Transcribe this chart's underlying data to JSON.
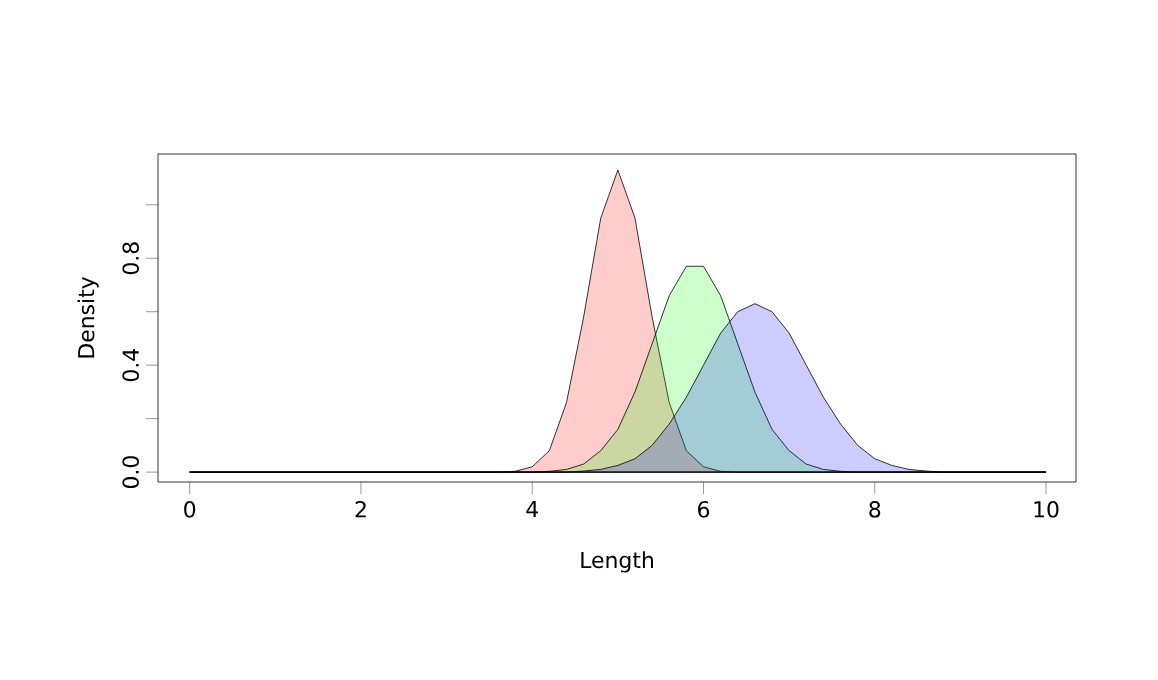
{
  "chart_data": {
    "type": "area",
    "xlabel": "Length",
    "ylabel": "Density",
    "xlim": [
      -0.37,
      10.35
    ],
    "ylim": [
      -0.037,
      1.19
    ],
    "xticks": [
      0,
      2,
      4,
      6,
      8,
      10
    ],
    "yticks": [
      {
        "value": 0,
        "label": "0.0"
      },
      {
        "value": 0.2,
        "label": null
      },
      0.4,
      {
        "value": 0.6,
        "label": null
      },
      0.8,
      {
        "value": 1.0,
        "label": null
      }
    ],
    "grid": false,
    "series": [
      {
        "color": "#ffcccc",
        "x": [
          0,
          3.6,
          3.8,
          4.0,
          4.2,
          4.4,
          4.6,
          4.8,
          5.0,
          5.2,
          5.4,
          5.6,
          5.8,
          6.0,
          6.2,
          6.4,
          10
        ],
        "values": [
          0,
          0,
          0.003,
          0.02,
          0.08,
          0.26,
          0.58,
          0.95,
          1.13,
          0.95,
          0.58,
          0.26,
          0.08,
          0.02,
          0.003,
          0,
          0
        ]
      },
      {
        "color": "#ccffcc",
        "x": [
          0,
          4.0,
          4.2,
          4.4,
          4.6,
          4.8,
          5.0,
          5.2,
          5.4,
          5.6,
          5.8,
          6.0,
          6.2,
          6.4,
          6.6,
          6.8,
          7.0,
          7.2,
          7.4,
          7.6,
          7.8,
          10
        ],
        "values": [
          0,
          0,
          0.003,
          0.01,
          0.03,
          0.08,
          0.16,
          0.3,
          0.48,
          0.66,
          0.77,
          0.77,
          0.66,
          0.48,
          0.3,
          0.16,
          0.08,
          0.03,
          0.01,
          0.003,
          0,
          0
        ]
      },
      {
        "color": "#ccccff",
        "x": [
          0,
          4.4,
          4.6,
          4.8,
          5.0,
          5.2,
          5.4,
          5.6,
          5.8,
          6.0,
          6.2,
          6.4,
          6.6,
          6.8,
          7.0,
          7.2,
          7.4,
          7.6,
          7.8,
          8.0,
          8.2,
          8.4,
          8.6,
          8.8,
          10
        ],
        "values": [
          0,
          0,
          0.004,
          0.01,
          0.025,
          0.05,
          0.1,
          0.18,
          0.28,
          0.4,
          0.52,
          0.6,
          0.63,
          0.6,
          0.52,
          0.4,
          0.28,
          0.18,
          0.1,
          0.05,
          0.025,
          0.01,
          0.004,
          0,
          0
        ]
      }
    ]
  }
}
